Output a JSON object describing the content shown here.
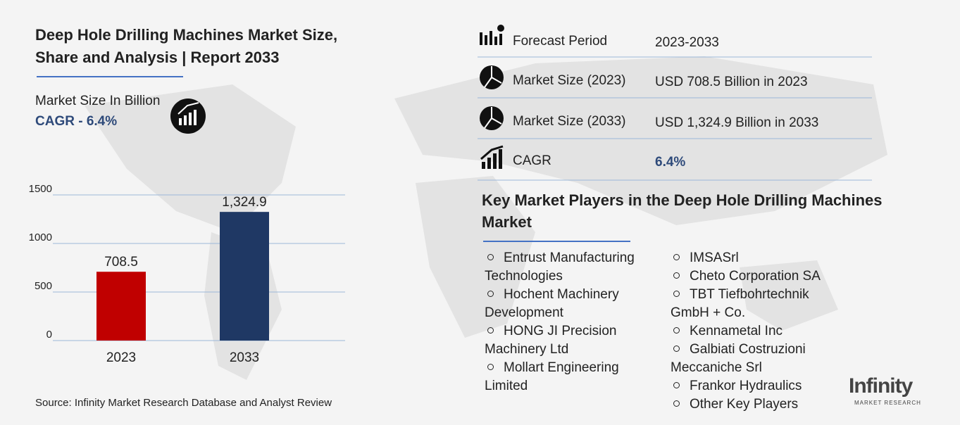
{
  "header": {
    "title_lines": [
      "Deep Hole Drilling Machines Market Size,",
      "Share and Analysis | Report 2033"
    ],
    "market_size_label": "Market Size In Billion",
    "cagr_label": "CAGR - 6.4%"
  },
  "chart_data": {
    "type": "bar",
    "categories": [
      "2023",
      "2033"
    ],
    "values": [
      708.5,
      1324.9
    ],
    "value_labels": [
      "708.5",
      "1,324.9"
    ],
    "colors": [
      "#c00000",
      "#1f3864"
    ],
    "ylim": [
      0,
      1500
    ],
    "yticks": [
      0,
      500,
      1000,
      1500
    ],
    "grid": true
  },
  "source": "Source: Infinity Market Research Database and Analyst Review",
  "summary": {
    "rows": [
      {
        "label": "Forecast Period",
        "value": "2023-2033"
      },
      {
        "label": "Market Size (2023)",
        "value": "USD 708.5 Billion in 2023"
      },
      {
        "label": "Market Size (2033)",
        "value": "USD 1,324.9 Billion in 2033"
      },
      {
        "label": "CAGR",
        "value": "6.4%"
      }
    ]
  },
  "key_players": {
    "title": "Key Market Players in the Deep Hole Drilling Machines Market",
    "columns": [
      [
        "Entrust Manufacturing Technologies",
        "Hochent Machinery Development",
        "HONG JI Precision Machinery Ltd",
        "Mollart Engineering Limited"
      ],
      [
        "IMSASrl",
        "Cheto Corporation SA",
        "TBT Tiefbohrtechnik GmbH + Co.",
        "Kennametal Inc",
        "Galbiati Costruzioni Meccaniche Srl",
        "Frankor Hydraulics",
        "Other Key Players"
      ]
    ]
  },
  "logo": {
    "name": "Infinity",
    "tagline": "MARKET RESEARCH"
  }
}
